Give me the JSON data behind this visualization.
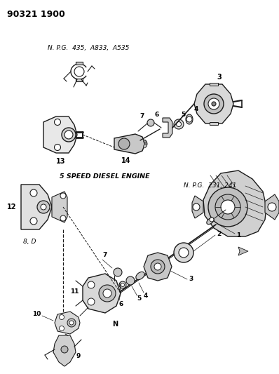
{
  "title_code": "90321 1900",
  "bg_color": "#ffffff",
  "line_color": "#1a1a1a",
  "label_npg_top": "N. P.G.  435,  A833,  A535",
  "label_npg_bottom": "N. P.G.  231, 241",
  "label_diesel": "5 SPEED DIESEL ENGINE",
  "label_8d": "8, D",
  "figsize": [
    3.98,
    5.33
  ],
  "dpi": 100
}
